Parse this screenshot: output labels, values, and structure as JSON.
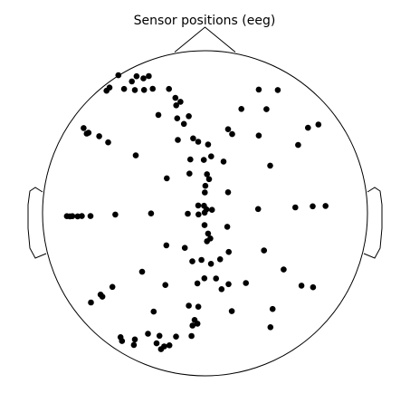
{
  "chart_data": {
    "type": "scatter",
    "title": "Sensor positions (eeg)",
    "xlabel": "",
    "ylabel": "",
    "xlim": [
      -1,
      1
    ],
    "ylim": [
      -1,
      1
    ],
    "grid": false,
    "legend": "none",
    "marker_color": "#000000",
    "head_outline": [
      "head",
      "nose",
      "left-ear",
      "right-ear"
    ],
    "points": [
      {
        "x": -0.533,
        "y": 0.849
      },
      {
        "x": -0.45,
        "y": 0.811
      },
      {
        "x": -0.421,
        "y": 0.843
      },
      {
        "x": -0.346,
        "y": 0.844
      },
      {
        "x": -0.588,
        "y": 0.773
      },
      {
        "x": -0.606,
        "y": 0.754
      },
      {
        "x": -0.498,
        "y": 0.765
      },
      {
        "x": -0.432,
        "y": 0.758
      },
      {
        "x": -0.379,
        "y": 0.83
      },
      {
        "x": -0.375,
        "y": 0.759
      },
      {
        "x": -0.322,
        "y": 0.766
      },
      {
        "x": -0.222,
        "y": 0.765
      },
      {
        "x": -0.182,
        "y": 0.71
      },
      {
        "x": -0.151,
        "y": 0.686
      },
      {
        "x": -0.177,
        "y": 0.664
      },
      {
        "x": -0.287,
        "y": 0.605
      },
      {
        "x": -0.171,
        "y": 0.584
      },
      {
        "x": -0.13,
        "y": 0.55
      },
      {
        "x": -0.1,
        "y": 0.597
      },
      {
        "x": 0.331,
        "y": 0.761
      },
      {
        "x": 0.448,
        "y": 0.758
      },
      {
        "x": 0.378,
        "y": 0.64
      },
      {
        "x": 0.224,
        "y": 0.642
      },
      {
        "x": -0.747,
        "y": 0.524
      },
      {
        "x": -0.728,
        "y": 0.49
      },
      {
        "x": -0.717,
        "y": 0.495
      },
      {
        "x": -0.651,
        "y": 0.474
      },
      {
        "x": -0.596,
        "y": 0.436
      },
      {
        "x": -0.426,
        "y": 0.356
      },
      {
        "x": -0.167,
        "y": 0.451
      },
      {
        "x": -0.073,
        "y": 0.461
      },
      {
        "x": -0.042,
        "y": 0.44
      },
      {
        "x": 0.019,
        "y": 0.423
      },
      {
        "x": 0.142,
        "y": 0.517
      },
      {
        "x": 0.167,
        "y": 0.487
      },
      {
        "x": 0.331,
        "y": 0.478
      },
      {
        "x": 0.573,
        "y": 0.42
      },
      {
        "x": 0.634,
        "y": 0.526
      },
      {
        "x": 0.698,
        "y": 0.546
      },
      {
        "x": 0.401,
        "y": 0.293
      },
      {
        "x": 0.114,
        "y": 0.318
      },
      {
        "x": 0.038,
        "y": 0.35
      },
      {
        "x": -0.007,
        "y": 0.328
      },
      {
        "x": -0.09,
        "y": 0.331
      },
      {
        "x": -0.096,
        "y": 0.244
      },
      {
        "x": -0.235,
        "y": 0.215
      },
      {
        "x": 0.012,
        "y": 0.24
      },
      {
        "x": 0.025,
        "y": 0.21
      },
      {
        "x": 0.002,
        "y": 0.169
      },
      {
        "x": -0.001,
        "y": 0.128
      },
      {
        "x": 0.142,
        "y": 0.129
      },
      {
        "x": -0.042,
        "y": 0.048
      },
      {
        "x": -0.006,
        "y": 0.046
      },
      {
        "x": 0.009,
        "y": 0.024
      },
      {
        "x": 0.043,
        "y": 0.021
      },
      {
        "x": -0.002,
        "y": 0.004
      },
      {
        "x": -0.04,
        "y": -0.007
      },
      {
        "x": -0.106,
        "y": -0.003
      },
      {
        "x": -0.332,
        "y": -0.001
      },
      {
        "x": 0.327,
        "y": 0.026
      },
      {
        "x": 0.556,
        "y": 0.036
      },
      {
        "x": 0.663,
        "y": 0.043
      },
      {
        "x": 0.742,
        "y": 0.045
      },
      {
        "x": -0.85,
        "y": -0.018
      },
      {
        "x": -0.832,
        "y": -0.019
      },
      {
        "x": -0.816,
        "y": -0.018
      },
      {
        "x": -0.784,
        "y": -0.019
      },
      {
        "x": -0.758,
        "y": -0.017
      },
      {
        "x": -0.705,
        "y": -0.017
      },
      {
        "x": -0.552,
        "y": -0.008
      },
      {
        "x": -0.003,
        "y": -0.073
      },
      {
        "x": 0.137,
        "y": -0.083
      },
      {
        "x": 0.019,
        "y": -0.125
      },
      {
        "x": 0.033,
        "y": -0.155
      },
      {
        "x": 0.012,
        "y": -0.172
      },
      {
        "x": -0.238,
        "y": -0.197
      },
      {
        "x": -0.124,
        "y": -0.213
      },
      {
        "x": 0.146,
        "y": -0.238
      },
      {
        "x": 0.093,
        "y": -0.283
      },
      {
        "x": 0.363,
        "y": -0.229
      },
      {
        "x": -0.078,
        "y": -0.296
      },
      {
        "x": -0.022,
        "y": -0.287
      },
      {
        "x": 0.037,
        "y": -0.311
      },
      {
        "x": -0.387,
        "y": -0.36
      },
      {
        "x": -0.244,
        "y": -0.441
      },
      {
        "x": -0.047,
        "y": -0.431
      },
      {
        "x": -0.004,
        "y": -0.4
      },
      {
        "x": 0.068,
        "y": -0.401
      },
      {
        "x": 0.145,
        "y": -0.436
      },
      {
        "x": 0.102,
        "y": -0.467
      },
      {
        "x": 0.252,
        "y": -0.429
      },
      {
        "x": 0.484,
        "y": -0.346
      },
      {
        "x": 0.594,
        "y": -0.445
      },
      {
        "x": 0.665,
        "y": -0.455
      },
      {
        "x": -0.57,
        "y": -0.453
      },
      {
        "x": -0.643,
        "y": -0.5
      },
      {
        "x": -0.632,
        "y": -0.513
      },
      {
        "x": -0.702,
        "y": -0.549
      },
      {
        "x": -0.316,
        "y": -0.605
      },
      {
        "x": -0.1,
        "y": -0.568
      },
      {
        "x": -0.041,
        "y": -0.575
      },
      {
        "x": 0.165,
        "y": -0.602
      },
      {
        "x": 0.416,
        "y": -0.589
      },
      {
        "x": 0.403,
        "y": -0.701
      },
      {
        "x": -0.064,
        "y": -0.656
      },
      {
        "x": -0.077,
        "y": -0.691
      },
      {
        "x": -0.046,
        "y": -0.679
      },
      {
        "x": -0.52,
        "y": -0.762
      },
      {
        "x": -0.511,
        "y": -0.786
      },
      {
        "x": -0.432,
        "y": -0.776
      },
      {
        "x": -0.351,
        "y": -0.741
      },
      {
        "x": -0.28,
        "y": -0.754
      },
      {
        "x": -0.298,
        "y": -0.8
      },
      {
        "x": -0.251,
        "y": -0.819
      },
      {
        "x": -0.219,
        "y": -0.812
      },
      {
        "x": -0.178,
        "y": -0.759
      },
      {
        "x": -0.438,
        "y": -0.81
      },
      {
        "x": -0.083,
        "y": -0.755
      },
      {
        "x": -0.271,
        "y": -0.836
      }
    ]
  }
}
